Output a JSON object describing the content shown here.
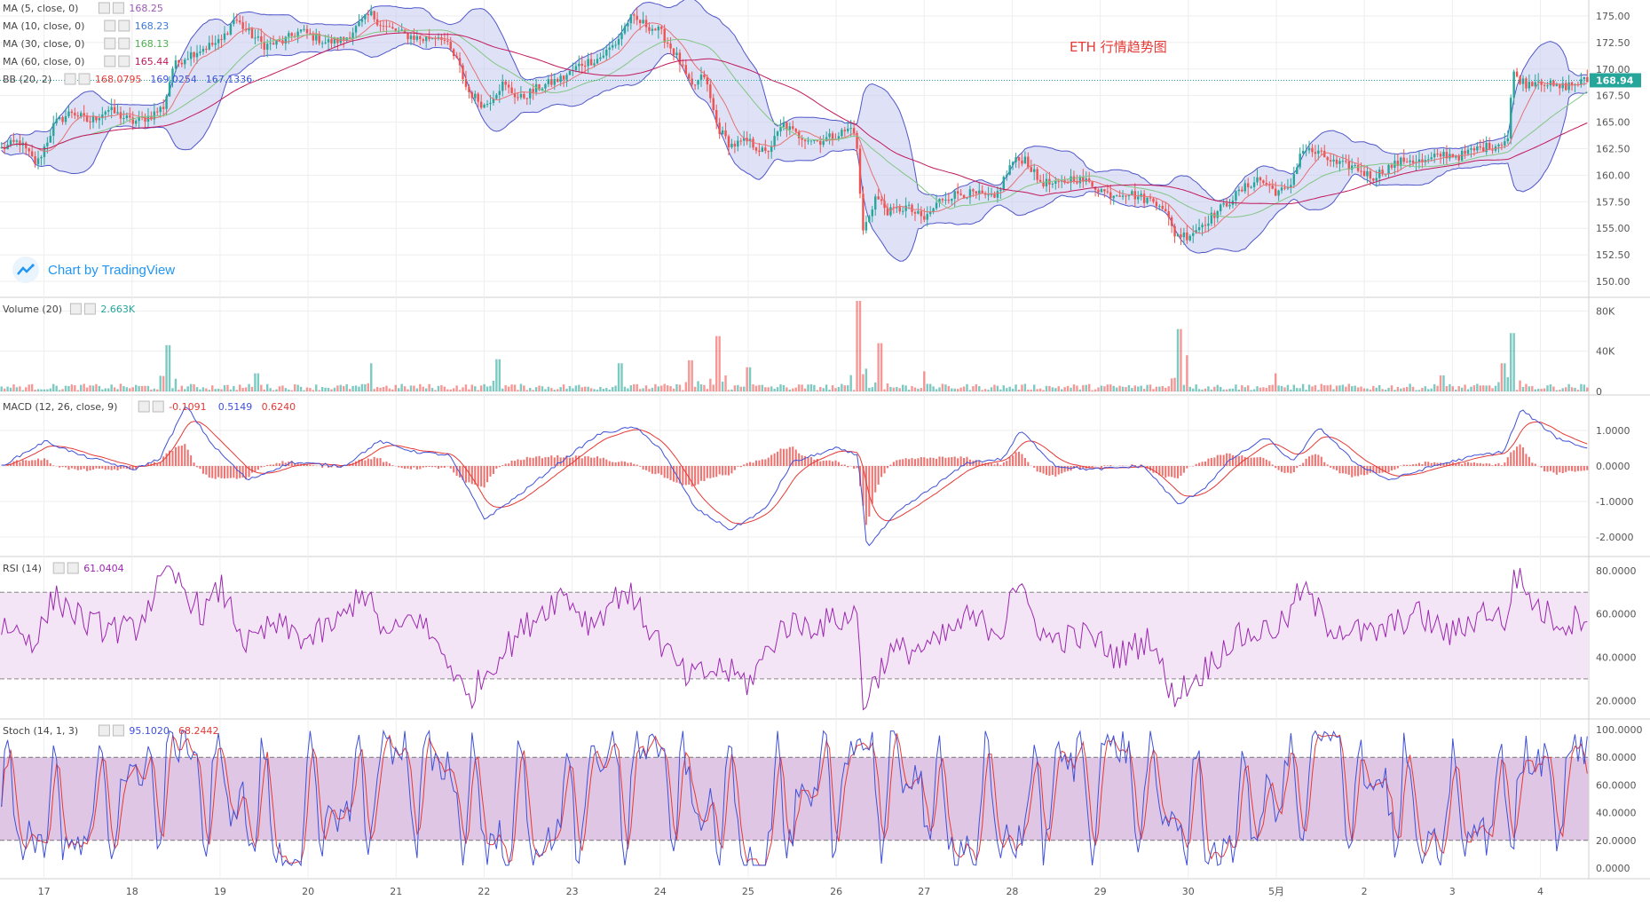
{
  "title": "ETH 行情趋势图",
  "watermark": "Chart by TradingView",
  "last_price_label": "168.94",
  "colors": {
    "up": "#26a69a",
    "down": "#ef5350",
    "bb_fill": "#c5c8ef",
    "bb_line": "#4f57c9",
    "ma5": "#9b59b6",
    "ma10": "#3c78d8",
    "ma30": "#4caf50",
    "ma60": "#c2185b",
    "macd": "#3f51d8",
    "signal": "#e53935",
    "rsi": "#9c27b0",
    "rsi_band": "#f3e5f5",
    "stoch_k": "#3f51d8",
    "stoch_d": "#e53935",
    "stoch_band": "#dfc6e4",
    "grid": "#eeeeee",
    "axis_text": "#555555",
    "title": "#e53935"
  },
  "legends": {
    "main": [
      {
        "name": "MA (5, close, 0)",
        "values": [
          "168.25"
        ],
        "colors": [
          "#9b59b6"
        ]
      },
      {
        "name": "MA (10, close, 0)",
        "values": [
          "168.23"
        ],
        "colors": [
          "#3c78d8"
        ]
      },
      {
        "name": "MA (30, close, 0)",
        "values": [
          "168.13"
        ],
        "colors": [
          "#4caf50"
        ]
      },
      {
        "name": "MA (60, close, 0)",
        "values": [
          "165.44"
        ],
        "colors": [
          "#c2185b"
        ]
      },
      {
        "name": "BB (20, 2)",
        "values": [
          "168.0795",
          "169.0254",
          "167.1336"
        ],
        "colors": [
          "#e53935",
          "#3f51d8",
          "#3f51d8"
        ]
      }
    ],
    "volume": {
      "name": "Volume (20)",
      "values": [
        "2.663K"
      ],
      "colors": [
        "#26a69a"
      ]
    },
    "macd": {
      "name": "MACD (12, 26, close, 9)",
      "values": [
        "-0.1091",
        "0.5149",
        "0.6240"
      ],
      "colors": [
        "#e53935",
        "#3f51d8",
        "#e53935"
      ]
    },
    "rsi": {
      "name": "RSI (14)",
      "values": [
        "61.0404"
      ],
      "colors": [
        "#9c27b0"
      ]
    },
    "stoch": {
      "name": "Stoch (14, 1, 3)",
      "values": [
        "95.1020",
        "68.2442"
      ],
      "colors": [
        "#3f51d8",
        "#e53935"
      ]
    }
  },
  "chart_data": {
    "type": "candlestick",
    "title": "ETH 行情趋势图",
    "x_labels": [
      "17",
      "18",
      "19",
      "20",
      "21",
      "22",
      "23",
      "24",
      "25",
      "26",
      "27",
      "28",
      "29",
      "30",
      "5月",
      "2",
      "3",
      "4"
    ],
    "x_range": [
      16.5,
      34.55
    ],
    "last_price": 168.94,
    "price": {
      "ylim": [
        149.0,
        176.0
      ],
      "yticks": [
        "150.00",
        "152.50",
        "155.00",
        "157.50",
        "160.00",
        "162.50",
        "165.00",
        "167.50",
        "170.00",
        "172.50",
        "175.00"
      ],
      "close_anchors": [
        [
          16.5,
          162.5
        ],
        [
          16.7,
          163.2
        ],
        [
          16.9,
          161.0
        ],
        [
          17.1,
          164.8
        ],
        [
          17.3,
          166.0
        ],
        [
          17.5,
          165.0
        ],
        [
          17.7,
          166.2
        ],
        [
          18.0,
          165.0
        ],
        [
          18.2,
          165.6
        ],
        [
          18.35,
          166.5
        ],
        [
          18.45,
          170.2
        ],
        [
          18.6,
          171.2
        ],
        [
          18.8,
          172.0
        ],
        [
          19.0,
          172.6
        ],
        [
          19.15,
          174.8
        ],
        [
          19.3,
          173.5
        ],
        [
          19.5,
          172.2
        ],
        [
          19.7,
          172.6
        ],
        [
          19.9,
          173.6
        ],
        [
          20.2,
          172.5
        ],
        [
          20.4,
          172.8
        ],
        [
          20.6,
          174.4
        ],
        [
          20.7,
          175.2
        ],
        [
          20.85,
          174.0
        ],
        [
          21.1,
          173.2
        ],
        [
          21.3,
          172.8
        ],
        [
          21.5,
          173.2
        ],
        [
          21.7,
          170.5
        ],
        [
          21.8,
          168.0
        ],
        [
          22.0,
          166.5
        ],
        [
          22.2,
          168.6
        ],
        [
          22.4,
          167.2
        ],
        [
          22.6,
          168.2
        ],
        [
          22.9,
          169.2
        ],
        [
          23.1,
          170.5
        ],
        [
          23.3,
          171.0
        ],
        [
          23.5,
          172.5
        ],
        [
          23.65,
          174.8
        ],
        [
          23.8,
          174.3
        ],
        [
          24.0,
          173.5
        ],
        [
          24.2,
          171.0
        ],
        [
          24.35,
          168.2
        ],
        [
          24.5,
          169.4
        ],
        [
          24.65,
          164.5
        ],
        [
          24.8,
          162.8
        ],
        [
          25.0,
          163.2
        ],
        [
          25.2,
          162.0
        ],
        [
          25.4,
          164.8
        ],
        [
          25.55,
          163.8
        ],
        [
          25.8,
          163.2
        ],
        [
          26.0,
          163.8
        ],
        [
          26.2,
          164.5
        ],
        [
          26.25,
          161.5
        ],
        [
          26.3,
          154.5
        ],
        [
          26.45,
          158.0
        ],
        [
          26.6,
          156.5
        ],
        [
          26.8,
          157.0
        ],
        [
          27.0,
          155.8
        ],
        [
          27.2,
          157.8
        ],
        [
          27.4,
          158.3
        ],
        [
          27.6,
          158.2
        ],
        [
          27.8,
          157.7
        ],
        [
          28.0,
          161.2
        ],
        [
          28.15,
          161.6
        ],
        [
          28.3,
          159.5
        ],
        [
          28.5,
          159.0
        ],
        [
          28.7,
          159.8
        ],
        [
          28.9,
          159.2
        ],
        [
          29.1,
          158.2
        ],
        [
          29.3,
          158.4
        ],
        [
          29.5,
          157.8
        ],
        [
          29.7,
          157.4
        ],
        [
          29.85,
          154.5
        ],
        [
          30.0,
          154.3
        ],
        [
          30.2,
          155.6
        ],
        [
          30.4,
          157.0
        ],
        [
          30.6,
          158.5
        ],
        [
          30.8,
          159.7
        ],
        [
          31.0,
          158.5
        ],
        [
          31.15,
          158.5
        ],
        [
          31.3,
          162.5
        ],
        [
          31.5,
          162.0
        ],
        [
          31.7,
          161.0
        ],
        [
          31.9,
          160.8
        ],
        [
          32.1,
          159.8
        ],
        [
          32.3,
          160.8
        ],
        [
          32.5,
          161.5
        ],
        [
          32.7,
          161.2
        ],
        [
          32.9,
          162.0
        ],
        [
          33.1,
          161.8
        ],
        [
          33.3,
          162.5
        ],
        [
          33.5,
          162.8
        ],
        [
          33.65,
          163.5
        ],
        [
          33.7,
          169.6
        ],
        [
          33.85,
          168.6
        ],
        [
          34.0,
          169.0
        ],
        [
          34.2,
          168.2
        ],
        [
          34.4,
          168.6
        ],
        [
          34.55,
          168.94
        ]
      ]
    },
    "volume": {
      "ylim": [
        0,
        90
      ],
      "yticks": [
        "0",
        "40K",
        "80K"
      ],
      "unit": "K",
      "base_level": 4,
      "spikes": [
        [
          18.4,
          46
        ],
        [
          19.4,
          18
        ],
        [
          20.7,
          28
        ],
        [
          22.15,
          32
        ],
        [
          23.55,
          28
        ],
        [
          24.35,
          31
        ],
        [
          24.65,
          55
        ],
        [
          25.0,
          24
        ],
        [
          26.25,
          90
        ],
        [
          26.5,
          48
        ],
        [
          27.0,
          20
        ],
        [
          29.9,
          62
        ],
        [
          30.0,
          36
        ],
        [
          31.0,
          18
        ],
        [
          32.9,
          16
        ],
        [
          33.6,
          28
        ],
        [
          33.7,
          58
        ]
      ]
    },
    "macd": {
      "ylim": [
        -2.4,
        1.85
      ],
      "yticks": [
        "-2.0000",
        "-1.0000",
        "0.0000",
        "1.0000"
      ],
      "anchors": [
        [
          16.5,
          0.0
        ],
        [
          17.0,
          0.7
        ],
        [
          17.4,
          0.3
        ],
        [
          18.0,
          -0.1
        ],
        [
          18.3,
          0.2
        ],
        [
          18.6,
          1.7
        ],
        [
          18.9,
          0.6
        ],
        [
          19.3,
          -0.4
        ],
        [
          19.8,
          0.1
        ],
        [
          20.4,
          0.0
        ],
        [
          20.8,
          0.7
        ],
        [
          21.2,
          0.4
        ],
        [
          21.6,
          0.3
        ],
        [
          22.0,
          -1.5
        ],
        [
          22.4,
          -0.8
        ],
        [
          22.8,
          0.0
        ],
        [
          23.3,
          0.9
        ],
        [
          23.7,
          1.1
        ],
        [
          24.0,
          0.5
        ],
        [
          24.4,
          -1.2
        ],
        [
          24.8,
          -1.8
        ],
        [
          25.2,
          -1.2
        ],
        [
          25.5,
          0.1
        ],
        [
          26.0,
          0.5
        ],
        [
          26.25,
          0.3
        ],
        [
          26.35,
          -2.3
        ],
        [
          26.7,
          -1.3
        ],
        [
          27.1,
          -0.6
        ],
        [
          27.5,
          0.1
        ],
        [
          27.9,
          0.2
        ],
        [
          28.1,
          1.0
        ],
        [
          28.5,
          0.0
        ],
        [
          28.9,
          -0.1
        ],
        [
          29.5,
          0.0
        ],
        [
          29.9,
          -1.1
        ],
        [
          30.2,
          -0.6
        ],
        [
          30.5,
          0.2
        ],
        [
          30.9,
          0.8
        ],
        [
          31.2,
          0.1
        ],
        [
          31.5,
          1.1
        ],
        [
          31.9,
          0.1
        ],
        [
          32.3,
          -0.4
        ],
        [
          32.8,
          0.0
        ],
        [
          33.3,
          0.3
        ],
        [
          33.6,
          0.4
        ],
        [
          33.8,
          1.6
        ],
        [
          34.2,
          0.8
        ],
        [
          34.55,
          0.5
        ]
      ],
      "signal_smoothing": 9
    },
    "rsi": {
      "ylim": [
        14,
        84
      ],
      "yticks": [
        "20.0000",
        "40.0000",
        "60.0000",
        "80.0000"
      ],
      "upper": 70,
      "lower": 30,
      "anchors": [
        [
          16.5,
          55
        ],
        [
          16.9,
          48
        ],
        [
          17.1,
          68
        ],
        [
          17.5,
          55
        ],
        [
          18.0,
          52
        ],
        [
          18.4,
          80
        ],
        [
          18.8,
          60
        ],
        [
          19.0,
          72
        ],
        [
          19.3,
          45
        ],
        [
          19.6,
          55
        ],
        [
          20.0,
          48
        ],
        [
          20.4,
          58
        ],
        [
          20.6,
          72
        ],
        [
          20.9,
          48
        ],
        [
          21.2,
          60
        ],
        [
          21.6,
          38
        ],
        [
          21.8,
          20
        ],
        [
          22.1,
          38
        ],
        [
          22.6,
          60
        ],
        [
          22.9,
          70
        ],
        [
          23.2,
          55
        ],
        [
          23.6,
          72
        ],
        [
          23.9,
          52
        ],
        [
          24.3,
          30
        ],
        [
          24.7,
          35
        ],
        [
          25.0,
          28
        ],
        [
          25.4,
          55
        ],
        [
          25.8,
          55
        ],
        [
          26.25,
          60
        ],
        [
          26.3,
          18
        ],
        [
          26.6,
          42
        ],
        [
          27.1,
          45
        ],
        [
          27.5,
          58
        ],
        [
          27.9,
          52
        ],
        [
          28.0,
          76
        ],
        [
          28.4,
          48
        ],
        [
          28.9,
          50
        ],
        [
          29.2,
          40
        ],
        [
          29.6,
          50
        ],
        [
          29.8,
          22
        ],
        [
          30.1,
          30
        ],
        [
          30.5,
          48
        ],
        [
          31.1,
          55
        ],
        [
          31.3,
          72
        ],
        [
          31.6,
          55
        ],
        [
          32.1,
          50
        ],
        [
          32.6,
          60
        ],
        [
          33.0,
          50
        ],
        [
          33.4,
          62
        ],
        [
          33.65,
          55
        ],
        [
          33.7,
          80
        ],
        [
          34.0,
          62
        ],
        [
          34.3,
          55
        ],
        [
          34.55,
          61
        ]
      ]
    },
    "stoch": {
      "ylim": [
        0,
        100
      ],
      "yticks": [
        "0.0000",
        "20.0000",
        "40.0000",
        "60.0000",
        "80.0000",
        "100.0000"
      ],
      "upper": 80,
      "lower": 20,
      "k_last": 95.1,
      "d_last": 68.24,
      "oscillation_count": 150
    }
  }
}
